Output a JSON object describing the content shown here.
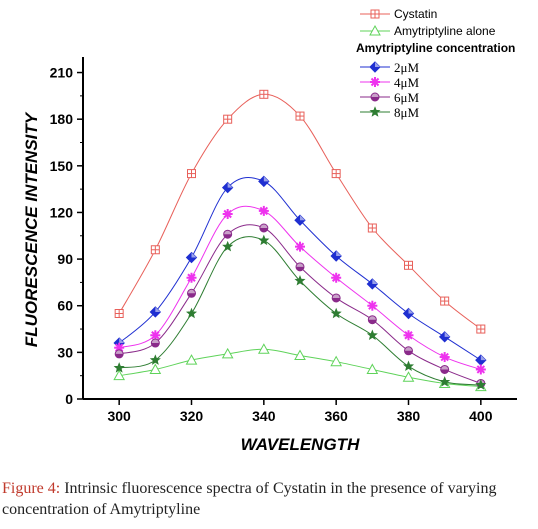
{
  "chart_data": {
    "type": "line",
    "xlabel": "WAVELENGTH",
    "ylabel": "FLUORESCENCE INTENSITY",
    "xlim": [
      290,
      410
    ],
    "ylim": [
      0,
      220
    ],
    "x_ticks": [
      300,
      320,
      340,
      360,
      380,
      400
    ],
    "y_ticks": [
      0,
      30,
      60,
      90,
      120,
      150,
      180,
      210
    ],
    "x": [
      300,
      310,
      320,
      330,
      340,
      350,
      360,
      370,
      380,
      390,
      400
    ],
    "legend_heading": "Amytriptyline concentration",
    "legend_position": "top-right",
    "grid": false,
    "series": [
      {
        "name": "Cystatin",
        "color": "#e8605a",
        "marker": "square-cross",
        "values": [
          55,
          96,
          145,
          180,
          196,
          182,
          145,
          110,
          86,
          63,
          45
        ]
      },
      {
        "name": "Amytriptyline alone",
        "color": "#5fd35a",
        "marker": "triangle",
        "values": [
          15,
          19,
          25,
          29,
          32,
          28,
          24,
          19,
          14,
          10,
          8
        ]
      },
      {
        "name": "2μM",
        "color": "#1f2fd1",
        "marker": "diamond",
        "values": [
          36,
          56,
          91,
          136,
          140,
          115,
          92,
          74,
          55,
          40,
          25
        ]
      },
      {
        "name": "4μM",
        "color": "#ee33ee",
        "marker": "star",
        "values": [
          33,
          41,
          78,
          119,
          121,
          98,
          78,
          60,
          41,
          27,
          19
        ]
      },
      {
        "name": "6μM",
        "color": "#8a2a8a",
        "marker": "circle-half",
        "values": [
          29,
          36,
          68,
          106,
          110,
          85,
          65,
          51,
          31,
          19,
          10
        ]
      },
      {
        "name": "8μM",
        "color": "#2e7d32",
        "marker": "star5",
        "values": [
          20,
          25,
          55,
          98,
          102,
          76,
          55,
          41,
          21,
          11,
          9
        ]
      }
    ]
  },
  "caption": {
    "label": "Figure 4:",
    "text": " Intrinsic fluorescence spectra of Cystatin in the presence of varying concentration of Amytriptyline"
  }
}
